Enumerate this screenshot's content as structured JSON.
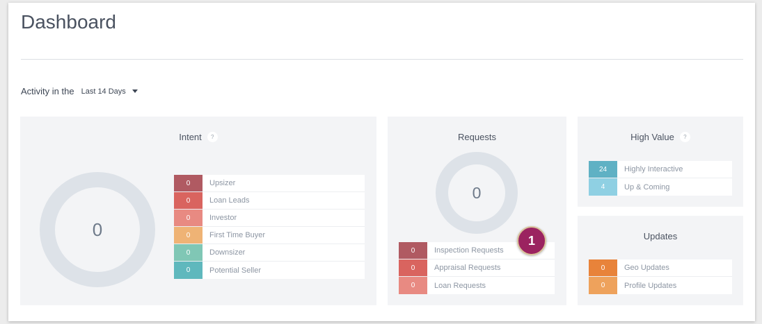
{
  "header": {
    "title": "Dashboard"
  },
  "activity": {
    "label": "Activity in the",
    "range": "Last 14 Days"
  },
  "intent": {
    "title": "Intent",
    "help": "?",
    "total": "0",
    "items": [
      {
        "value": "0",
        "label": "Upsizer",
        "color": "#b05a62"
      },
      {
        "value": "0",
        "label": "Loan Leads",
        "color": "#d9645f"
      },
      {
        "value": "0",
        "label": "Investor",
        "color": "#e88a82"
      },
      {
        "value": "0",
        "label": "First Time Buyer",
        "color": "#efb375"
      },
      {
        "value": "0",
        "label": "Downsizer",
        "color": "#80c7b5"
      },
      {
        "value": "0",
        "label": "Potential Seller",
        "color": "#5fb8bd"
      }
    ]
  },
  "requests": {
    "title": "Requests",
    "total": "0",
    "items": [
      {
        "value": "0",
        "label": "Inspection Requests",
        "color": "#b05a62"
      },
      {
        "value": "0",
        "label": "Appraisal Requests",
        "color": "#d9645f"
      },
      {
        "value": "0",
        "label": "Loan Requests",
        "color": "#e88a82"
      }
    ]
  },
  "high_value": {
    "title": "High Value",
    "help": "?",
    "items": [
      {
        "value": "24",
        "label": "Highly Interactive",
        "color": "#5fb1c4"
      },
      {
        "value": "4",
        "label": "Up & Coming",
        "color": "#8fd0e3"
      }
    ]
  },
  "updates": {
    "title": "Updates",
    "items": [
      {
        "value": "0",
        "label": "Geo Updates",
        "color": "#e8833a"
      },
      {
        "value": "0",
        "label": "Profile Updates",
        "color": "#eea25c"
      }
    ]
  },
  "callout": {
    "number": "1"
  }
}
